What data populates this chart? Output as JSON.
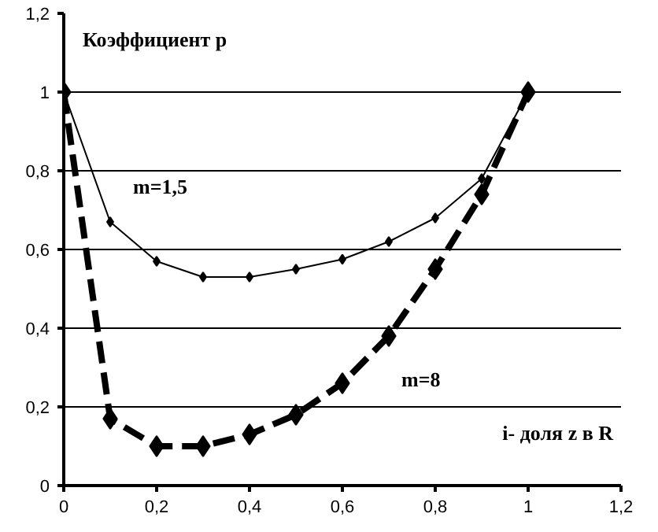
{
  "chart_data": {
    "type": "line",
    "xlabel": "i- доля z в R",
    "ylabel": "Коэффициент p",
    "x": [
      0,
      0.1,
      0.2,
      0.3,
      0.4,
      0.5,
      0.6,
      0.7,
      0.8,
      0.9,
      1.0
    ],
    "series": [
      {
        "name": "m=1,5",
        "color": "#000000",
        "line_style": "solid",
        "marker": "diamond",
        "values": [
          1.0,
          0.67,
          0.57,
          0.53,
          0.53,
          0.55,
          0.575,
          0.62,
          0.68,
          0.78,
          1.0
        ]
      },
      {
        "name": "m=8",
        "color": "#000000",
        "line_style": "dashed",
        "marker": "diamond",
        "values": [
          1.0,
          0.17,
          0.1,
          0.1,
          0.13,
          0.18,
          0.26,
          0.38,
          0.55,
          0.74,
          1.0
        ]
      }
    ],
    "xlim": [
      0,
      1.2
    ],
    "ylim": [
      0,
      1.2
    ],
    "xticks": [
      0,
      {
        "value": 0.2,
        "label": "0,2"
      },
      {
        "value": 0.4,
        "label": "0,4"
      },
      {
        "value": 0.6,
        "label": "0,6"
      },
      {
        "value": 0.8,
        "label": "0,8"
      },
      1,
      {
        "value": 1.2,
        "label": "1,2"
      }
    ],
    "yticks": [
      0,
      {
        "value": 0.2,
        "label": "0,2"
      },
      {
        "value": 0.4,
        "label": "0,4"
      },
      {
        "value": 0.6,
        "label": "0,6"
      },
      {
        "value": 0.8,
        "label": "0,8"
      },
      1,
      {
        "value": 1.2,
        "label": "1,2"
      }
    ],
    "grid": "y"
  }
}
